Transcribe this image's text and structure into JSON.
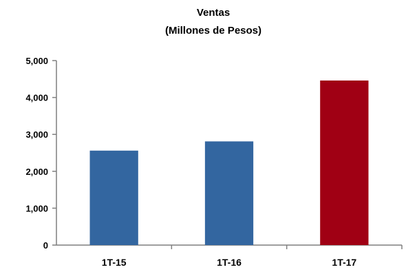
{
  "chart_data": {
    "type": "bar",
    "title": "Ventas",
    "subtitle": "(Millones de Pesos)",
    "xlabel": "",
    "ylabel": "",
    "categories": [
      "1T-15",
      "1T-16",
      "1T-17"
    ],
    "values": [
      2560,
      2810,
      4460
    ],
    "bar_colors": [
      "#3366a0",
      "#3366a0",
      "#a00014"
    ],
    "ylim": [
      0,
      5000
    ],
    "y_ticks": [
      0,
      1000,
      2000,
      3000,
      4000,
      5000
    ],
    "y_tick_labels": [
      "0",
      "1,000",
      "2,000",
      "3,000",
      "4,000",
      "5,000"
    ],
    "grid": false,
    "legend": "none"
  }
}
